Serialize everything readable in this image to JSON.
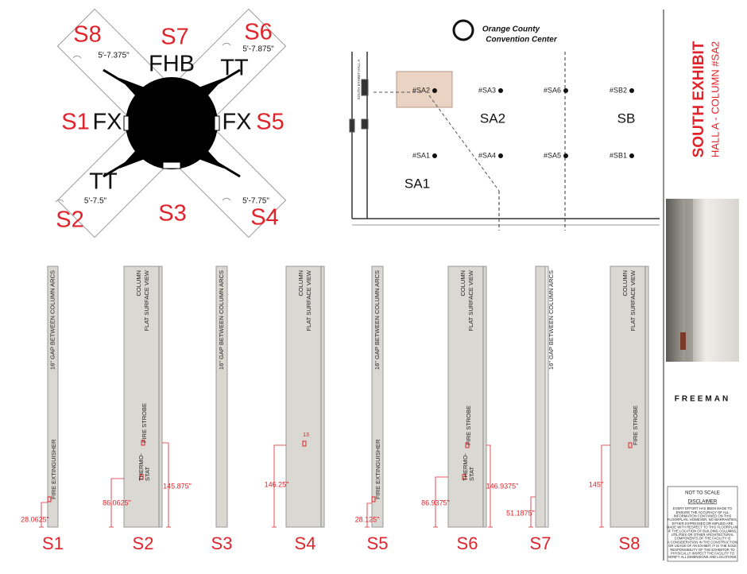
{
  "plan": {
    "sides": [
      "S8",
      "S7",
      "S6",
      "S1",
      "S5",
      "S2",
      "S3",
      "S4"
    ],
    "fixtures": [
      "FHB",
      "TT",
      "FX",
      "FX",
      "TT"
    ],
    "measurements": [
      "5'-7.375\"",
      "5'-7.875\"",
      "5'-7.5\"",
      "5'-7.75\""
    ]
  },
  "map": {
    "logo_lines": [
      "Orange County",
      "Convention Center"
    ],
    "hall_label": "SOUTH EXHIBIT HALL A",
    "columns": [
      "#SA2",
      "#SA3",
      "#SA6",
      "#SB2",
      "#SA1",
      "#SA4",
      "#SA5",
      "#SB1"
    ],
    "zones": [
      "SA2",
      "SB",
      "SA1"
    ]
  },
  "sidebar": {
    "title": "SOUTH EXHIBIT",
    "subtitle": "HALL A - COLUMN #SA2",
    "brand": "FREEMAN",
    "scale_note": "NOT TO SCALE",
    "disclaimer_title": "DISCLAIMER",
    "disclaimer_lines": [
      "EVERY EFFORT HAS BEEN MADE TO",
      "ENSURE THE ACCURACY OF ALL",
      "INFORMATION CONTAINED ON THIS",
      "FLOORPLAN. HOWEVER, NO WARRANTIES,",
      "EITHER EXPRESSED OR IMPLIED ARE",
      "MADE WITH RESPECT TO THIS FLOORPLAN.",
      "IF THE LOCATION OF BUILDING COLUMNS,",
      "UTILITIES OR OTHER ARCHITECTURAL",
      "COMPONENTS OF THE FACILITY IS",
      "A CONSIDERATION IN THE CONSTRUCTION",
      "OR USAGE OF AN EXHIBIT, IT IS THE SOLE",
      "RESPONSIBILITY OF THE EXHIBITOR TO",
      "PHYSICALLY INSPECT THE FACILITY TO",
      "VERIFY ALL DIMENSIONS AND LOCATIONS."
    ]
  },
  "elevations": [
    {
      "name": "S1",
      "view": [
        "16\" GAP BETWEEN COLUMN ARCS"
      ],
      "fixtures": [
        {
          "lines": [
            "FIRE EXTINGUISHER"
          ]
        }
      ],
      "dimensions": [
        "28.0625\""
      ]
    },
    {
      "name": "S2",
      "view": [
        "COLUMN",
        "FLAT SURFACE VIEW"
      ],
      "fixtures": [
        {
          "lines": [
            "THERMO-",
            "STAT"
          ]
        },
        {
          "lines": [
            "FIRE STROBE"
          ]
        }
      ],
      "dimensions": [
        "86.0625\"",
        "145.875\""
      ]
    },
    {
      "name": "S3",
      "view": [
        "16\" GAP BETWEEN COLUMN ARCS"
      ],
      "fixtures": [],
      "dimensions": []
    },
    {
      "name": "S4",
      "view": [
        "COLUMN",
        "FLAT SURFACE VIEW"
      ],
      "fixtures": [
        {
          "lines": [
            "13"
          ]
        }
      ],
      "dimensions": [
        "146.25\""
      ]
    },
    {
      "name": "S5",
      "view": [
        "16\" GAP BETWEEN COLUMN ARCS"
      ],
      "fixtures": [
        {
          "lines": [
            "FIRE EXTINGUISHER"
          ]
        }
      ],
      "dimensions": [
        "28.125\""
      ]
    },
    {
      "name": "S6",
      "view": [
        "COLUMN",
        "FLAT SURFACE VIEW"
      ],
      "fixtures": [
        {
          "lines": [
            "THERMO-",
            "STAT"
          ]
        },
        {
          "lines": [
            "FIRE STROBE"
          ]
        }
      ],
      "dimensions": [
        "86.9375\"",
        "146.9375\""
      ]
    },
    {
      "name": "S7",
      "view": [
        "16\" GAP BETWEEN COLUMN ARCS"
      ],
      "fixtures": [],
      "dimensions": [
        "51.1875\""
      ]
    },
    {
      "name": "S8",
      "view": [
        "COLUMN",
        "FLAT SURFACE VIEW"
      ],
      "fixtures": [
        {
          "lines": [
            "FIRE STROBE"
          ]
        }
      ],
      "dimensions": [
        "145\""
      ]
    }
  ]
}
